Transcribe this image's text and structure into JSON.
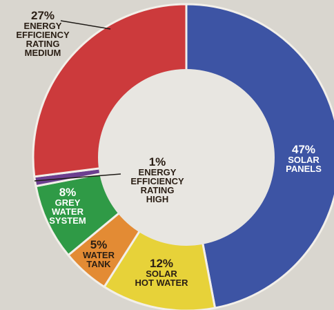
{
  "chart_data": {
    "type": "pie",
    "donut": true,
    "title": "",
    "slices": [
      {
        "label_lines": [
          "SOLAR",
          "PANELS"
        ],
        "percent_label": "47%",
        "value": 47,
        "color": "#3d54a4",
        "text_color": "#ffffff"
      },
      {
        "label_lines": [
          "SOLAR",
          "HOT WATER"
        ],
        "percent_label": "12%",
        "value": 12,
        "color": "#e7d239",
        "text_color": "#2a1e14"
      },
      {
        "label_lines": [
          "WATER",
          "TANK"
        ],
        "percent_label": "5%",
        "value": 5,
        "color": "#e38b34",
        "text_color": "#2a1e14"
      },
      {
        "label_lines": [
          "GREY",
          "WATER",
          "SYSTEM"
        ],
        "percent_label": "8%",
        "value": 8,
        "color": "#2f9a46",
        "text_color": "#ffffff"
      },
      {
        "label_lines": [
          "ENERGY",
          "EFFICIENCY",
          "RATING",
          "HIGH"
        ],
        "percent_label": "1%",
        "value": 1,
        "color": "#6c3f8f",
        "text_color": "#2a1e14"
      },
      {
        "label_lines": [
          "ENERGY",
          "EFFICIENCY",
          "RATING",
          "MEDIUM"
        ],
        "percent_label": "27%",
        "value": 27,
        "color": "#cc3a3c",
        "text_color": "#2a1e14"
      }
    ]
  }
}
